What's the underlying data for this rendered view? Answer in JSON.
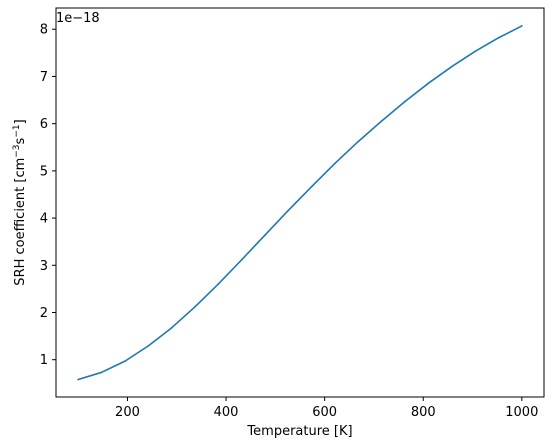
{
  "chart_data": {
    "type": "line",
    "title": "",
    "xlabel": "Temperature [K]",
    "ylabel_prefix": "SRH coefficient [cm",
    "ylabel_sup1": "−3",
    "ylabel_mid": "s",
    "ylabel_sup2": "−1",
    "ylabel_suffix": "]",
    "y_offset_text": "1e−18",
    "y_scale_factor": 1e-18,
    "xlim": [
      55,
      1045
    ],
    "ylim": [
      0.21,
      8.45
    ],
    "xticks": [
      200,
      400,
      600,
      800,
      1000
    ],
    "xtick_labels": [
      "200",
      "400",
      "600",
      "800",
      "1000"
    ],
    "yticks": [
      1,
      2,
      3,
      4,
      5,
      6,
      7,
      8
    ],
    "ytick_labels": [
      "1",
      "2",
      "3",
      "4",
      "5",
      "6",
      "7",
      "8"
    ],
    "grid": false,
    "line_color": "#1f77b4",
    "x": [
      100,
      147,
      195,
      242,
      289,
      337,
      384,
      432,
      479,
      526,
      574,
      621,
      668,
      716,
      763,
      811,
      858,
      905,
      953,
      1000
    ],
    "y": [
      0.58,
      0.73,
      0.97,
      1.29,
      1.67,
      2.12,
      2.6,
      3.12,
      3.64,
      4.16,
      4.67,
      5.16,
      5.62,
      6.06,
      6.47,
      6.86,
      7.21,
      7.53,
      7.82,
      8.07
    ]
  }
}
